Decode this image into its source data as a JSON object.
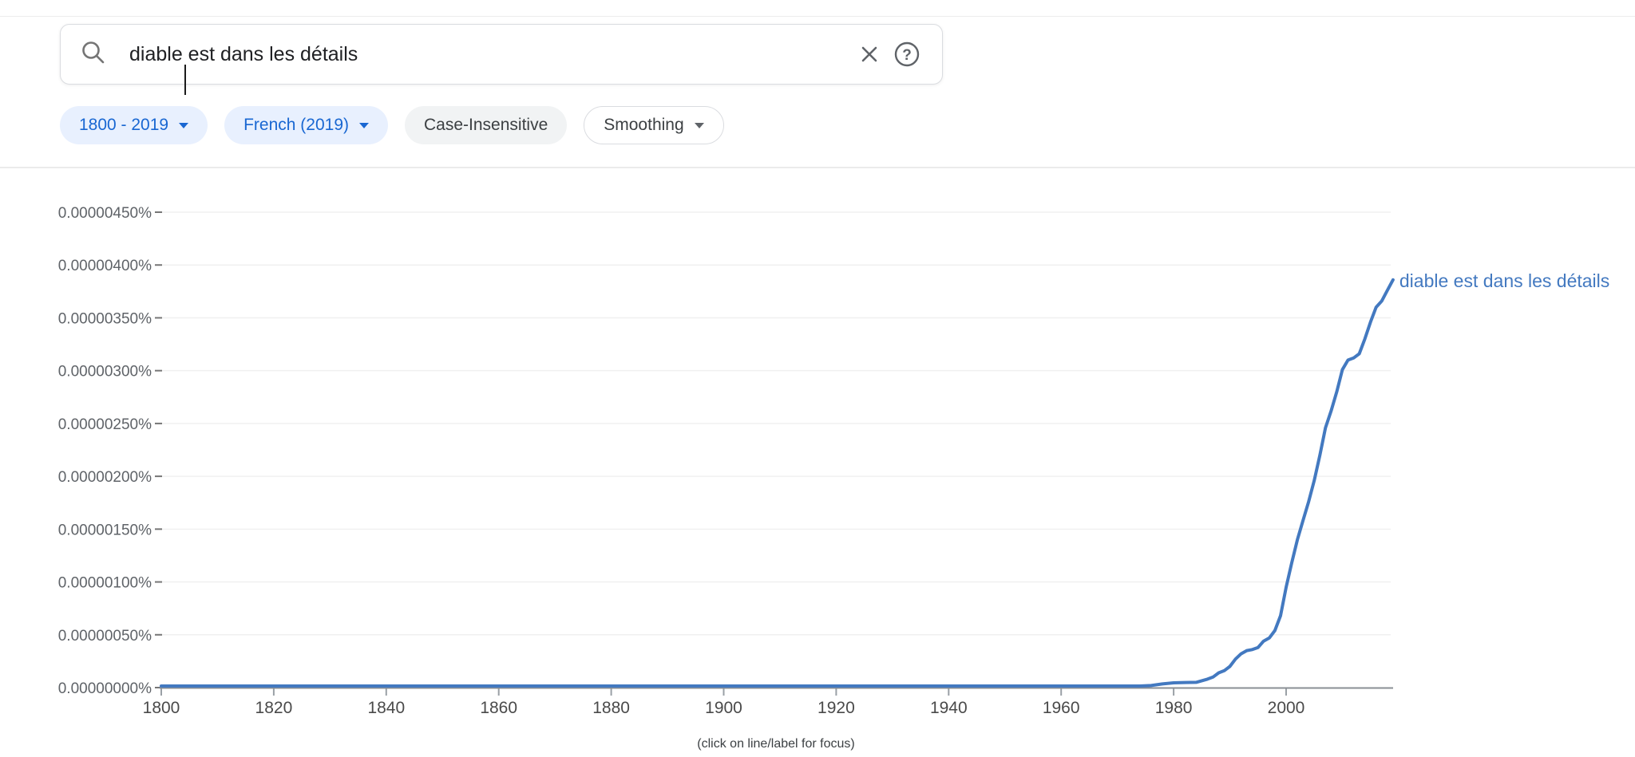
{
  "search": {
    "value": "diable est dans les détails",
    "placeholder": "",
    "help_icon_glyph": "?"
  },
  "filters": {
    "year_range": {
      "label": "1800 - 2019",
      "has_dropdown": true,
      "active": true
    },
    "corpus": {
      "label": "French (2019)",
      "has_dropdown": true,
      "active": true
    },
    "case_sensitivity": {
      "label": "Case-Insensitive",
      "has_dropdown": false,
      "active": false
    },
    "smoothing": {
      "label": "Smoothing",
      "has_dropdown": true,
      "active": false
    }
  },
  "colors": {
    "accent_blue": "#1967d2",
    "chip_background_blue": "#e8f0fe",
    "line_blue": "#4379c0"
  },
  "chart_data": {
    "type": "line",
    "title": "",
    "xlabel": "",
    "ylabel": "",
    "xlim": [
      1800,
      2019
    ],
    "ylim": [
      0,
      4.5e-06
    ],
    "ytick_step": 5e-07,
    "ytick_labels": [
      "0.00000000%",
      "0.00000050%",
      "0.00000100%",
      "0.00000150%",
      "0.00000200%",
      "0.00000250%",
      "0.00000300%",
      "0.00000350%",
      "0.00000400%",
      "0.00000450%"
    ],
    "xticks": [
      1800,
      1820,
      1840,
      1860,
      1880,
      1900,
      1920,
      1940,
      1960,
      1980,
      2000
    ],
    "grid": true,
    "legend_position": "right of line end",
    "caption": "(click on line/label for focus)",
    "series": [
      {
        "name": "diable est dans les détails",
        "color": "#4379c0",
        "points": [
          [
            1800,
            0
          ],
          [
            1820,
            0
          ],
          [
            1840,
            0
          ],
          [
            1860,
            0
          ],
          [
            1880,
            0
          ],
          [
            1900,
            0
          ],
          [
            1920,
            0
          ],
          [
            1940,
            0
          ],
          [
            1950,
            0
          ],
          [
            1960,
            0
          ],
          [
            1965,
            0
          ],
          [
            1968,
            0
          ],
          [
            1970,
            0
          ],
          [
            1972,
            5e-09
          ],
          [
            1974,
            1e-08
          ],
          [
            1976,
            2e-08
          ],
          [
            1978,
            3.5e-08
          ],
          [
            1980,
            4.5e-08
          ],
          [
            1982,
            4.8e-08
          ],
          [
            1984,
            5e-08
          ],
          [
            1986,
            8e-08
          ],
          [
            1987,
            1e-07
          ],
          [
            1988,
            1.4e-07
          ],
          [
            1989,
            1.6e-07
          ],
          [
            1990,
            2e-07
          ],
          [
            1991,
            2.7e-07
          ],
          [
            1992,
            3.2e-07
          ],
          [
            1993,
            3.5e-07
          ],
          [
            1994,
            3.6e-07
          ],
          [
            1995,
            3.8e-07
          ],
          [
            1996,
            4.4e-07
          ],
          [
            1997,
            4.7e-07
          ],
          [
            1998,
            5.4e-07
          ],
          [
            1999,
            6.8e-07
          ],
          [
            2000,
            9.5e-07
          ],
          [
            2001,
            1.18e-06
          ],
          [
            2002,
            1.4e-06
          ],
          [
            2003,
            1.58e-06
          ],
          [
            2004,
            1.76e-06
          ],
          [
            2005,
            1.96e-06
          ],
          [
            2006,
            2.2e-06
          ],
          [
            2007,
            2.46e-06
          ],
          [
            2008,
            2.62e-06
          ],
          [
            2009,
            2.8e-06
          ],
          [
            2010,
            3.01e-06
          ],
          [
            2011,
            3.1e-06
          ],
          [
            2012,
            3.12e-06
          ],
          [
            2013,
            3.16e-06
          ],
          [
            2014,
            3.3e-06
          ],
          [
            2015,
            3.46e-06
          ],
          [
            2016,
            3.6e-06
          ],
          [
            2017,
            3.66e-06
          ],
          [
            2018,
            3.76e-06
          ],
          [
            2019,
            3.86e-06
          ]
        ]
      }
    ]
  }
}
